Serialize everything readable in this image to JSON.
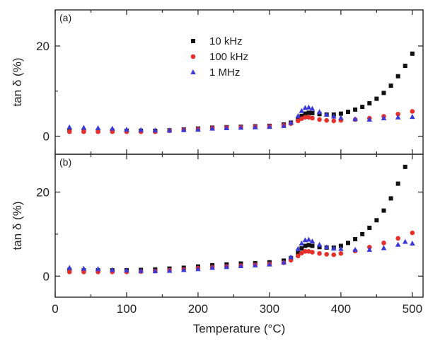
{
  "chart_data": [
    {
      "type": "scatter",
      "panel_label": "(a)",
      "ylabel": "tan δ (%)",
      "xlabel": "Temperature (°C)",
      "xlim": [
        0,
        515
      ],
      "ylim": [
        -4,
        28
      ],
      "xticks": [
        0,
        100,
        200,
        300,
        400,
        500
      ],
      "yticks": [
        0,
        20
      ],
      "legend_position": "top-center",
      "series": [
        {
          "name": "10 kHz",
          "marker": "square",
          "color": "#111111",
          "x": [
            20,
            40,
            60,
            80,
            100,
            120,
            140,
            160,
            180,
            200,
            220,
            240,
            260,
            280,
            300,
            320,
            330,
            340,
            345,
            350,
            355,
            360,
            370,
            380,
            390,
            400,
            410,
            420,
            430,
            440,
            450,
            460,
            470,
            480,
            490,
            500
          ],
          "y": [
            1.2,
            1.2,
            1.2,
            1.2,
            1.2,
            1.2,
            1.2,
            1.3,
            1.5,
            1.7,
            1.9,
            2.0,
            2.1,
            2.2,
            2.3,
            2.6,
            3.0,
            3.8,
            4.5,
            5.0,
            5.2,
            5.1,
            4.9,
            4.8,
            4.8,
            5.0,
            5.4,
            5.9,
            6.5,
            7.3,
            8.3,
            9.6,
            11.2,
            13.3,
            15.6,
            18.3
          ]
        },
        {
          "name": "100 kHz",
          "marker": "circle",
          "color": "#e8302a",
          "x": [
            20,
            40,
            60,
            80,
            100,
            120,
            140,
            160,
            180,
            200,
            220,
            240,
            260,
            280,
            300,
            320,
            330,
            340,
            345,
            350,
            355,
            360,
            370,
            380,
            390,
            400,
            420,
            440,
            460,
            480,
            500
          ],
          "y": [
            1.0,
            1.0,
            1.0,
            1.0,
            1.0,
            1.0,
            1.0,
            1.2,
            1.4,
            1.6,
            1.8,
            1.9,
            2.0,
            2.1,
            2.2,
            2.4,
            2.8,
            3.4,
            3.9,
            4.2,
            4.2,
            4.0,
            3.7,
            3.5,
            3.4,
            3.5,
            3.7,
            4.0,
            4.4,
            4.9,
            5.5
          ]
        },
        {
          "name": "1 MHz",
          "marker": "triangle",
          "color": "#3a3ad8",
          "x": [
            20,
            40,
            60,
            80,
            100,
            120,
            140,
            160,
            180,
            200,
            220,
            240,
            260,
            280,
            300,
            320,
            330,
            340,
            345,
            350,
            355,
            360,
            370,
            380,
            390,
            400,
            420,
            440,
            460,
            480,
            500
          ],
          "y": [
            2.0,
            1.9,
            1.8,
            1.7,
            1.5,
            1.4,
            1.3,
            1.3,
            1.4,
            1.5,
            1.7,
            1.8,
            1.9,
            2.0,
            2.1,
            2.3,
            3.0,
            4.5,
            5.6,
            6.3,
            6.4,
            6.1,
            5.4,
            4.8,
            4.4,
            4.1,
            3.8,
            3.7,
            4.0,
            4.2,
            4.3
          ]
        }
      ]
    },
    {
      "type": "scatter",
      "panel_label": "(b)",
      "ylabel": "tan δ (%)",
      "xlabel": "Temperature (°C)",
      "xlim": [
        0,
        515
      ],
      "ylim": [
        -5,
        29
      ],
      "xticks": [
        0,
        100,
        200,
        300,
        400,
        500
      ],
      "yticks": [
        0,
        20
      ],
      "series": [
        {
          "name": "10 kHz",
          "marker": "square",
          "color": "#111111",
          "x": [
            20,
            40,
            60,
            80,
            100,
            120,
            140,
            160,
            180,
            200,
            220,
            240,
            260,
            280,
            300,
            320,
            330,
            340,
            345,
            350,
            355,
            360,
            370,
            380,
            390,
            400,
            410,
            420,
            430,
            440,
            450,
            460,
            470,
            480,
            490
          ],
          "y": [
            1.5,
            1.4,
            1.4,
            1.4,
            1.4,
            1.5,
            1.6,
            1.8,
            2.0,
            2.3,
            2.6,
            2.8,
            3.0,
            3.1,
            3.3,
            3.7,
            4.3,
            5.5,
            6.6,
            7.2,
            7.4,
            7.2,
            6.9,
            6.8,
            6.8,
            7.2,
            7.9,
            8.8,
            10.0,
            11.5,
            13.3,
            15.6,
            18.5,
            22.0,
            26.0
          ]
        },
        {
          "name": "100 kHz",
          "marker": "circle",
          "color": "#e8302a",
          "x": [
            20,
            40,
            60,
            80,
            100,
            120,
            140,
            160,
            180,
            200,
            220,
            240,
            260,
            280,
            300,
            320,
            330,
            340,
            345,
            350,
            355,
            360,
            370,
            380,
            390,
            400,
            420,
            440,
            460,
            480,
            500
          ],
          "y": [
            1.0,
            1.0,
            1.0,
            1.0,
            1.0,
            1.1,
            1.2,
            1.4,
            1.6,
            1.9,
            2.1,
            2.3,
            2.5,
            2.7,
            2.9,
            3.2,
            3.8,
            4.8,
            5.5,
            5.9,
            5.9,
            5.7,
            5.4,
            5.2,
            5.1,
            5.4,
            6.0,
            6.9,
            7.9,
            9.0,
            10.3
          ]
        },
        {
          "name": "1 MHz",
          "marker": "triangle",
          "color": "#3a3ad8",
          "x": [
            20,
            40,
            60,
            80,
            100,
            120,
            140,
            160,
            180,
            200,
            220,
            240,
            260,
            280,
            300,
            320,
            330,
            340,
            345,
            350,
            355,
            360,
            370,
            380,
            390,
            400,
            420,
            440,
            460,
            480,
            490,
            500
          ],
          "y": [
            2.0,
            1.8,
            1.7,
            1.5,
            1.4,
            1.3,
            1.2,
            1.3,
            1.5,
            1.7,
            2.0,
            2.2,
            2.4,
            2.6,
            2.8,
            3.3,
            4.5,
            6.5,
            7.8,
            8.6,
            8.7,
            8.3,
            7.5,
            6.9,
            6.6,
            6.5,
            6.3,
            6.3,
            6.7,
            7.5,
            8.2,
            7.8
          ]
        }
      ]
    }
  ]
}
